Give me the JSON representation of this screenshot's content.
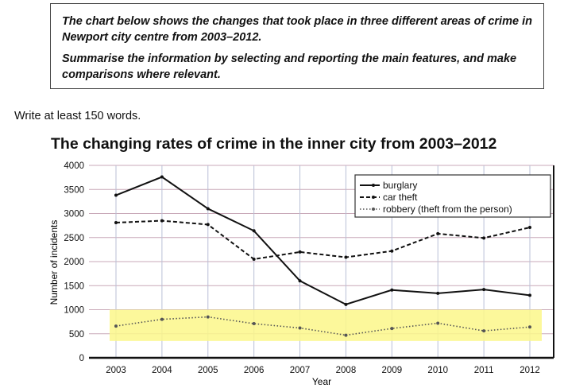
{
  "task": {
    "line1": "The chart below shows the changes that took place in three different areas of crime in Newport city centre from 2003–2012.",
    "line2": "Summarise the information by selecting and reporting the main features, and make comparisons where relevant."
  },
  "instruction": "Write at least 150 words.",
  "chart_data": {
    "type": "line",
    "title": "The changing rates of crime in the inner city from 2003–2012",
    "xlabel": "Year",
    "ylabel": "Number of incidents",
    "x": [
      "2003",
      "2004",
      "2005",
      "2006",
      "2007",
      "2008",
      "2009",
      "2010",
      "2011",
      "2012"
    ],
    "ylim": [
      0,
      4000
    ],
    "yticks": [
      0,
      500,
      1000,
      1500,
      2000,
      2500,
      3000,
      3500,
      4000
    ],
    "grid": true,
    "legend_position": "top-right",
    "highlight": {
      "ymin": 350,
      "ymax": 1000,
      "color": "#fbf78a"
    },
    "series": [
      {
        "name": "burglary",
        "style": "solid",
        "values": [
          3380,
          3760,
          3100,
          2640,
          1600,
          1110,
          1410,
          1340,
          1420,
          1300
        ]
      },
      {
        "name": "car theft",
        "style": "dashed",
        "values": [
          2810,
          2850,
          2770,
          2050,
          2200,
          2090,
          2220,
          2580,
          2490,
          2710
        ]
      },
      {
        "name": "robbery (theft from the person)",
        "style": "dotted",
        "values": [
          660,
          800,
          850,
          710,
          620,
          470,
          610,
          720,
          560,
          640
        ]
      }
    ]
  }
}
